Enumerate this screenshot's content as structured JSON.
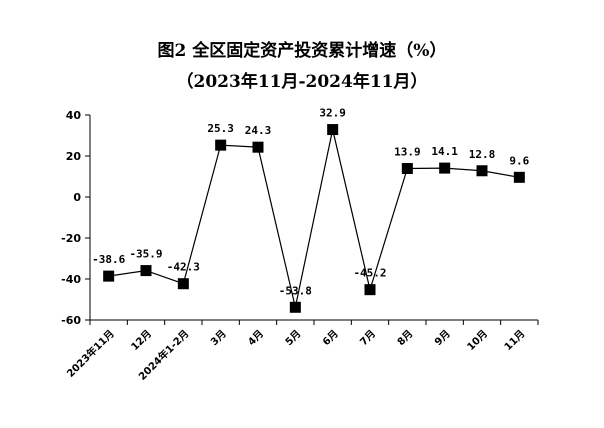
{
  "chart_data": {
    "type": "line",
    "title": "图2  全区固定资产投资累计增速（%）",
    "subtitle": "（2023年11月-2024年11月）",
    "categories": [
      "2023年11月",
      "12月",
      "2024年1-2月",
      "3月",
      "4月",
      "5月",
      "6月",
      "7月",
      "8月",
      "9月",
      "10月",
      "11月"
    ],
    "series": [
      {
        "values": [
          -38.6,
          -35.9,
          -42.3,
          25.3,
          24.3,
          -53.8,
          32.9,
          -45.2,
          13.9,
          14.1,
          12.8,
          9.6
        ]
      }
    ],
    "data_labels": [
      "-38.6",
      "-35.9",
      "-42.3",
      "25.3",
      "24.3",
      "-53.8",
      "32.9",
      "-45.2",
      "13.9",
      "14.1",
      "12.8",
      "9.6"
    ],
    "yticks": [
      "40",
      "20",
      "0",
      "-20",
      "-40",
      "-60"
    ],
    "ylim": [
      -60,
      40
    ],
    "grid": false,
    "line_color": "#000000",
    "marker": "square"
  }
}
